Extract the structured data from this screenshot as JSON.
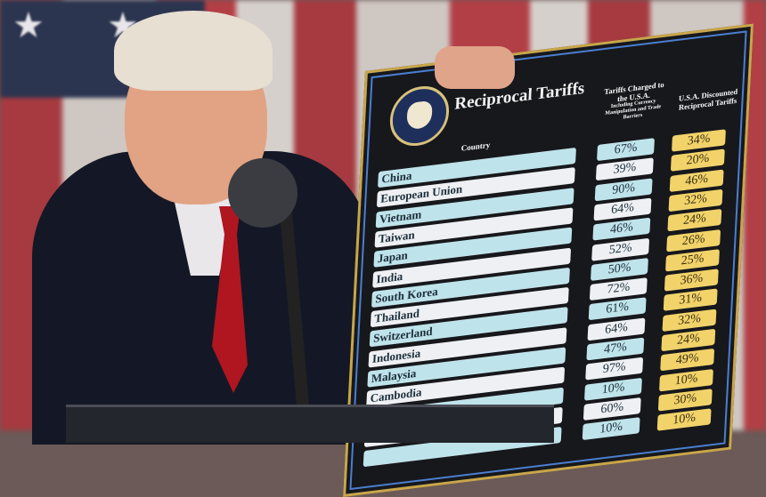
{
  "board": {
    "title": "Reciprocal Tariffs",
    "seal": "Seal of the President of the United States",
    "headers": {
      "country": "Country",
      "charged": "Tariffs Charged to the U.S.A.",
      "charged_sub": "Including Currency Manipulation and Trade Barriers",
      "discounted": "U.S.A. Discounted Reciprocal Tariffs"
    },
    "colors": {
      "board": "#17181c",
      "row_a": "#bfe3ea",
      "row_b": "#eef0f3",
      "discounted": "#f1d36a",
      "border": "#c9a64a"
    },
    "rows": [
      {
        "country": "China",
        "charged": "67%",
        "discounted": "34%"
      },
      {
        "country": "European Union",
        "charged": "39%",
        "discounted": "20%"
      },
      {
        "country": "Vietnam",
        "charged": "90%",
        "discounted": "46%"
      },
      {
        "country": "Taiwan",
        "charged": "64%",
        "discounted": "32%"
      },
      {
        "country": "Japan",
        "charged": "46%",
        "discounted": "24%"
      },
      {
        "country": "India",
        "charged": "52%",
        "discounted": "26%"
      },
      {
        "country": "South Korea",
        "charged": "50%",
        "discounted": "25%"
      },
      {
        "country": "Thailand",
        "charged": "72%",
        "discounted": "36%"
      },
      {
        "country": "Switzerland",
        "charged": "61%",
        "discounted": "31%"
      },
      {
        "country": "Indonesia",
        "charged": "64%",
        "discounted": "32%"
      },
      {
        "country": "Malaysia",
        "charged": "47%",
        "discounted": "24%"
      },
      {
        "country": "Cambodia",
        "charged": "97%",
        "discounted": "49%"
      },
      {
        "country": "",
        "charged": "10%",
        "discounted": "10%"
      },
      {
        "country": "",
        "charged": "60%",
        "discounted": "30%"
      },
      {
        "country": "",
        "charged": "10%",
        "discounted": "10%"
      }
    ]
  }
}
